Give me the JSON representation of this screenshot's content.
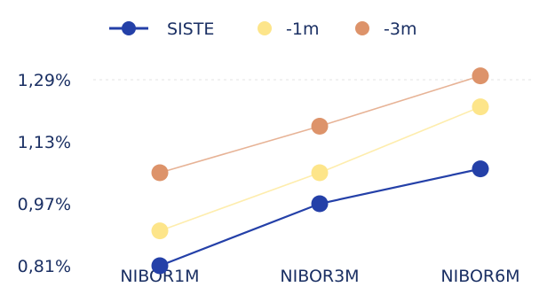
{
  "chart_data": {
    "type": "line",
    "categories": [
      "NIBOR1M",
      "NIBOR3M",
      "NIBOR6M"
    ],
    "series": [
      {
        "name": "SISTE",
        "values": [
          0.81,
          0.97,
          1.06
        ],
        "color": "#2440a8",
        "line": true
      },
      {
        "name": "-1m",
        "values": [
          0.9,
          1.05,
          1.22
        ],
        "color": "#fde58a",
        "line": true
      },
      {
        "name": "-3m",
        "values": [
          1.05,
          1.17,
          1.3
        ],
        "color": "#dd936a",
        "line": true
      }
    ],
    "y_ticks": [
      "0,81%",
      "0,97%",
      "1,13%",
      "1,29%"
    ],
    "y_tick_values": [
      0.81,
      0.97,
      1.13,
      1.29
    ],
    "ylim": [
      0.81,
      1.29
    ],
    "grid": false,
    "legend_position": "top"
  }
}
